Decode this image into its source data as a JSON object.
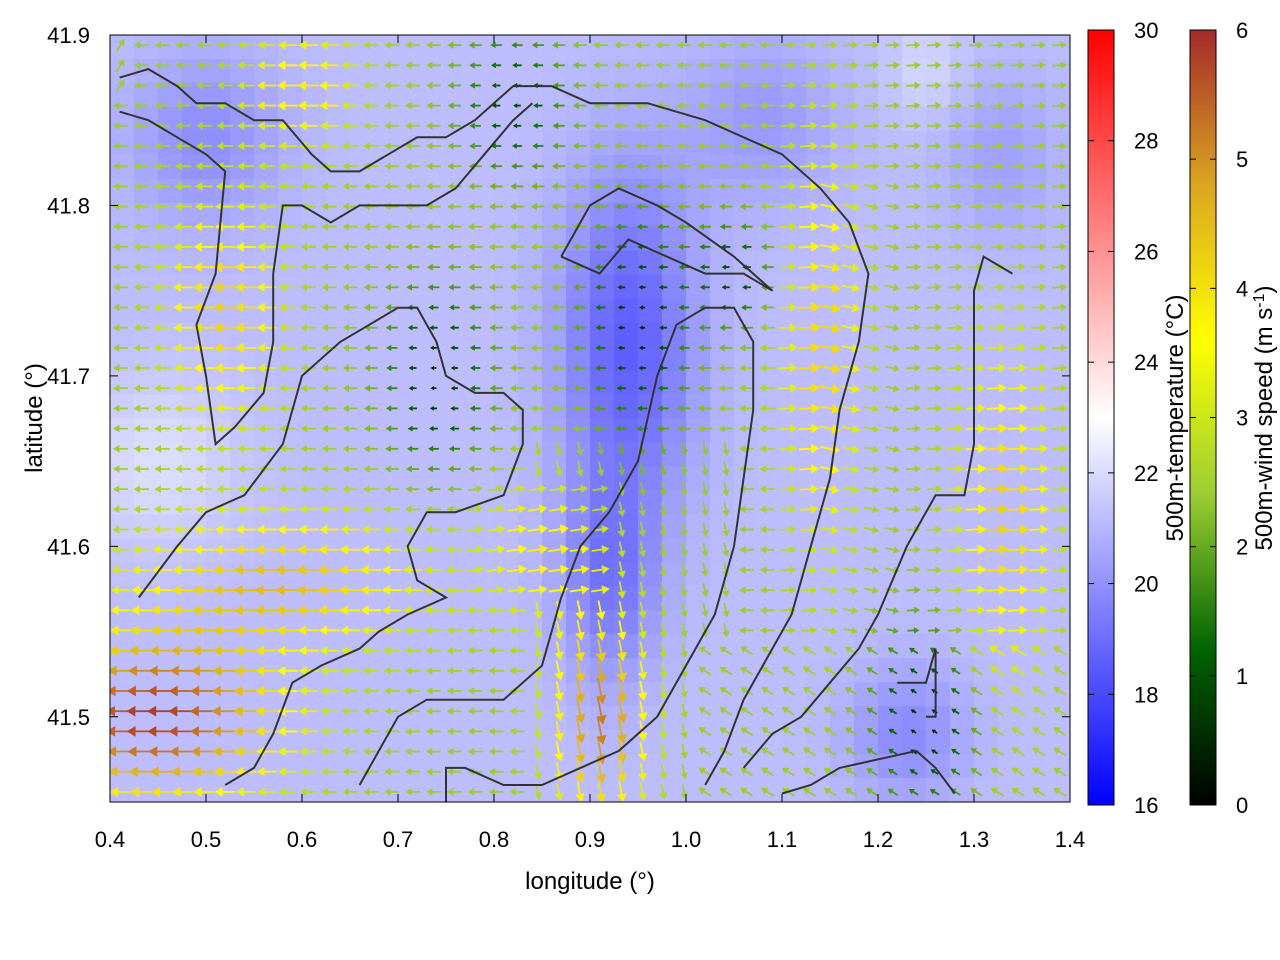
{
  "chart_data": {
    "type": "heatmap",
    "xlabel": "longitude (°)",
    "ylabel": "latitude (°)",
    "xlim": [
      0.4,
      1.4
    ],
    "ylim": [
      41.45,
      41.9
    ],
    "xticks": [
      "0.4",
      "0.5",
      "0.6",
      "0.7",
      "0.8",
      "0.9",
      "1.0",
      "1.1",
      "1.2",
      "1.3",
      "1.4"
    ],
    "yticks": [
      "41.5",
      "41.6",
      "41.7",
      "41.8",
      "41.9"
    ],
    "temperature": {
      "label": "500m-temperature (°C)",
      "range": [
        16,
        30
      ],
      "ticks": [
        "16",
        "18",
        "20",
        "22",
        "24",
        "26",
        "28",
        "30"
      ],
      "colors": [
        "#0000ff",
        "#ffffff",
        "#ff0000"
      ]
    },
    "wind_speed": {
      "label": "500m-wind speed (m s-1)",
      "label_base": "500m-wind speed (m s",
      "label_sup": "-1",
      "label_end": ")",
      "range": [
        0,
        6
      ],
      "ticks": [
        "0",
        "1",
        "2",
        "3",
        "4",
        "5",
        "6"
      ],
      "colors": [
        "#000000",
        "#006400",
        "#9acd32",
        "#ffff00",
        "#daa520",
        "#a52a2a"
      ]
    },
    "contours": [
      [
        [
          0.41,
          41.875
        ],
        [
          0.44,
          41.88
        ],
        [
          0.47,
          41.87
        ],
        [
          0.49,
          41.86
        ],
        [
          0.52,
          41.86
        ],
        [
          0.55,
          41.85
        ],
        [
          0.58,
          41.85
        ],
        [
          0.61,
          41.83
        ],
        [
          0.63,
          41.82
        ],
        [
          0.66,
          41.82
        ],
        [
          0.69,
          41.83
        ],
        [
          0.72,
          41.84
        ],
        [
          0.75,
          41.84
        ],
        [
          0.78,
          41.85
        ],
        [
          0.82,
          41.87
        ],
        [
          0.86,
          41.87
        ],
        [
          0.9,
          41.86
        ],
        [
          0.96,
          41.86
        ],
        [
          1.02,
          41.85
        ],
        [
          1.06,
          41.84
        ]
      ],
      [
        [
          0.41,
          41.855
        ],
        [
          0.44,
          41.85
        ],
        [
          0.47,
          41.84
        ],
        [
          0.5,
          41.83
        ],
        [
          0.52,
          41.82
        ],
        [
          0.51,
          41.76
        ],
        [
          0.49,
          41.73
        ],
        [
          0.5,
          41.7
        ],
        [
          0.51,
          41.66
        ],
        [
          0.53,
          41.67
        ],
        [
          0.56,
          41.69
        ],
        [
          0.57,
          41.72
        ],
        [
          0.57,
          41.76
        ],
        [
          0.58,
          41.8
        ],
        [
          0.6,
          41.8
        ],
        [
          0.63,
          41.79
        ],
        [
          0.66,
          41.8
        ],
        [
          0.7,
          41.8
        ],
        [
          0.73,
          41.8
        ],
        [
          0.76,
          41.81
        ],
        [
          0.79,
          41.83
        ],
        [
          0.82,
          41.85
        ],
        [
          0.84,
          41.86
        ]
      ],
      [
        [
          0.43,
          41.57
        ],
        [
          0.47,
          41.6
        ],
        [
          0.5,
          41.62
        ],
        [
          0.54,
          41.63
        ],
        [
          0.58,
          41.66
        ],
        [
          0.6,
          41.7
        ],
        [
          0.62,
          41.71
        ],
        [
          0.64,
          41.72
        ],
        [
          0.67,
          41.73
        ],
        [
          0.7,
          41.74
        ],
        [
          0.72,
          41.74
        ],
        [
          0.74,
          41.72
        ],
        [
          0.75,
          41.7
        ],
        [
          0.78,
          41.69
        ],
        [
          0.81,
          41.69
        ],
        [
          0.83,
          41.68
        ],
        [
          0.83,
          41.66
        ],
        [
          0.81,
          41.63
        ],
        [
          0.76,
          41.62
        ],
        [
          0.73,
          41.62
        ],
        [
          0.71,
          41.6
        ],
        [
          0.72,
          41.58
        ],
        [
          0.75,
          41.57
        ],
        [
          0.71,
          41.56
        ],
        [
          0.68,
          41.55
        ],
        [
          0.66,
          41.54
        ],
        [
          0.62,
          41.53
        ],
        [
          0.59,
          41.52
        ],
        [
          0.57,
          41.49
        ],
        [
          0.55,
          41.47
        ],
        [
          0.52,
          41.46
        ]
      ],
      [
        [
          0.66,
          41.46
        ],
        [
          0.7,
          41.5
        ],
        [
          0.73,
          41.51
        ],
        [
          0.77,
          41.51
        ],
        [
          0.81,
          41.51
        ],
        [
          0.85,
          41.53
        ],
        [
          0.87,
          41.57
        ],
        [
          0.89,
          41.6
        ],
        [
          0.92,
          41.62
        ],
        [
          0.95,
          41.65
        ],
        [
          0.97,
          41.7
        ],
        [
          0.99,
          41.73
        ],
        [
          1.02,
          41.74
        ],
        [
          1.05,
          41.74
        ],
        [
          1.07,
          41.72
        ],
        [
          1.07,
          41.68
        ],
        [
          1.06,
          41.64
        ],
        [
          1.05,
          41.6
        ],
        [
          1.03,
          41.56
        ],
        [
          1.0,
          41.53
        ],
        [
          0.97,
          41.5
        ],
        [
          0.93,
          41.48
        ],
        [
          0.89,
          41.47
        ],
        [
          0.85,
          41.46
        ],
        [
          0.81,
          41.46
        ],
        [
          0.77,
          41.47
        ],
        [
          0.75,
          41.47
        ],
        [
          0.75,
          41.45
        ]
      ],
      [
        [
          0.87,
          41.77
        ],
        [
          0.91,
          41.76
        ],
        [
          0.94,
          41.78
        ],
        [
          0.98,
          41.77
        ],
        [
          1.02,
          41.76
        ],
        [
          1.06,
          41.76
        ],
        [
          1.09,
          41.75
        ],
        [
          1.05,
          41.77
        ],
        [
          1.0,
          41.79
        ],
        [
          0.97,
          41.8
        ],
        [
          0.93,
          41.81
        ],
        [
          0.9,
          41.8
        ],
        [
          0.87,
          41.77
        ]
      ],
      [
        [
          1.06,
          41.84
        ],
        [
          1.1,
          41.83
        ],
        [
          1.14,
          41.81
        ],
        [
          1.17,
          41.79
        ],
        [
          1.19,
          41.76
        ],
        [
          1.18,
          41.72
        ],
        [
          1.16,
          41.68
        ],
        [
          1.15,
          41.64
        ],
        [
          1.13,
          41.6
        ],
        [
          1.11,
          41.56
        ],
        [
          1.09,
          41.54
        ],
        [
          1.06,
          41.51
        ],
        [
          1.04,
          41.48
        ],
        [
          1.02,
          41.46
        ]
      ],
      [
        [
          1.34,
          41.76
        ],
        [
          1.31,
          41.77
        ],
        [
          1.3,
          41.75
        ],
        [
          1.3,
          41.7
        ],
        [
          1.3,
          41.66
        ],
        [
          1.29,
          41.63
        ],
        [
          1.26,
          41.63
        ],
        [
          1.23,
          41.6
        ],
        [
          1.2,
          41.56
        ],
        [
          1.18,
          41.54
        ],
        [
          1.15,
          41.52
        ],
        [
          1.12,
          41.5
        ],
        [
          1.09,
          41.49
        ],
        [
          1.06,
          41.47
        ]
      ],
      [
        [
          1.1,
          41.455
        ],
        [
          1.13,
          41.46
        ],
        [
          1.16,
          41.47
        ],
        [
          1.2,
          41.475
        ],
        [
          1.24,
          41.48
        ],
        [
          1.26,
          41.47
        ],
        [
          1.28,
          41.455
        ]
      ],
      [
        [
          1.22,
          41.52
        ],
        [
          1.25,
          41.52
        ],
        [
          1.26,
          41.54
        ],
        [
          1.26,
          41.5
        ],
        [
          1.25,
          41.5
        ]
      ]
    ],
    "grid": false,
    "legend": "none"
  }
}
